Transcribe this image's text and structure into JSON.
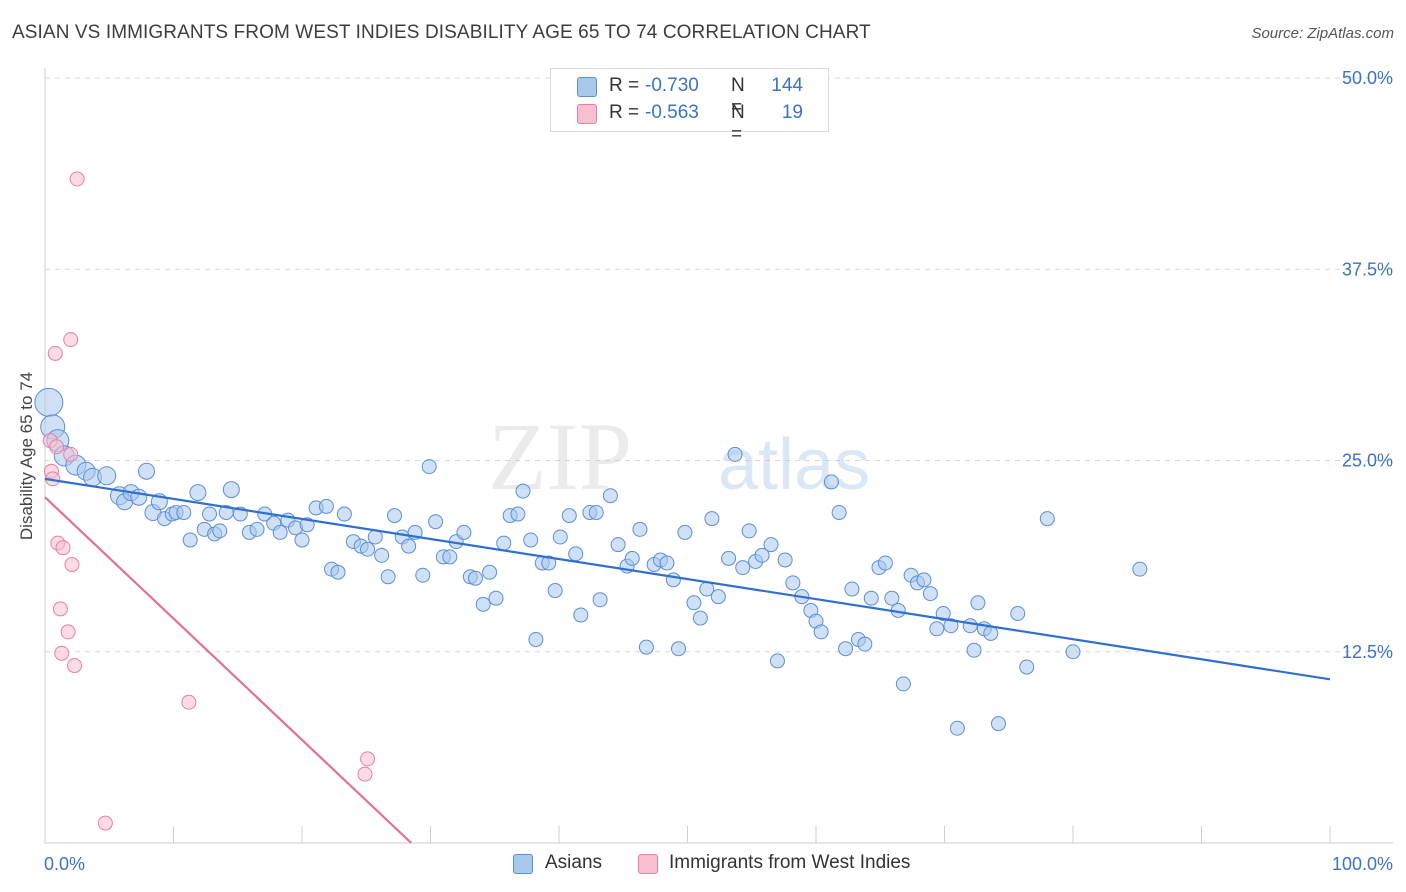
{
  "title": "ASIAN VS IMMIGRANTS FROM WEST INDIES DISABILITY AGE 65 TO 74 CORRELATION CHART",
  "source": "Source: ZipAtlas.com",
  "watermark": {
    "part1": "ZIP",
    "part2": "atlas"
  },
  "colors": {
    "asians_fill": "#a9c8ee",
    "asians_stroke": "#5b8fd6",
    "asians_line": "#2f6fcf",
    "wi_fill": "#f7bfd0",
    "wi_stroke": "#e77fa3",
    "wi_line": "#e07099",
    "tick_text": "#3b73c4",
    "grid": "#d8d8d8"
  },
  "legend_top": [
    {
      "r_label": "R =",
      "r_value": "-0.730",
      "n_label": "N =",
      "n_value": "144"
    },
    {
      "r_label": "R =",
      "r_value": "-0.563",
      "n_label": "N =",
      "n_value": "19"
    }
  ],
  "legend_bottom": [
    "Asians",
    "Immigrants from West Indies"
  ],
  "chart_data": {
    "type": "scatter",
    "xlabel": "",
    "ylabel": "Disability Age 65 to 74",
    "xlim": [
      0,
      100
    ],
    "ylim": [
      0,
      50
    ],
    "x_tick_labels": [
      {
        "value": 0,
        "label": "0.0%"
      },
      {
        "value": 100,
        "label": "100.0%"
      }
    ],
    "y_tick_labels": [
      {
        "value": 12.5,
        "label": "12.5%"
      },
      {
        "value": 25.0,
        "label": "25.0%"
      },
      {
        "value": 37.5,
        "label": "37.5%"
      },
      {
        "value": 50.0,
        "label": "50.0%"
      }
    ],
    "grid": "horizontal dashed",
    "legend_placement": "top-center",
    "series": [
      {
        "name": "Asians",
        "trend": {
          "x": [
            0,
            100
          ],
          "y": [
            23.8,
            10.7
          ]
        },
        "points": [
          [
            0.3,
            28.8,
            14
          ],
          [
            0.6,
            27.2,
            12
          ],
          [
            1.0,
            26.3,
            11
          ],
          [
            1.5,
            25.3,
            10
          ],
          [
            2.4,
            24.7,
            10
          ],
          [
            3.2,
            24.3,
            9
          ],
          [
            3.7,
            23.9,
            9
          ],
          [
            4.8,
            24.0,
            9
          ],
          [
            5.8,
            22.7,
            9
          ],
          [
            6.2,
            22.3,
            8
          ],
          [
            6.7,
            22.9,
            8
          ],
          [
            7.3,
            22.6,
            8
          ],
          [
            7.9,
            24.3,
            8
          ],
          [
            8.4,
            21.6,
            8
          ],
          [
            8.9,
            22.3,
            8
          ],
          [
            9.3,
            21.2,
            7
          ],
          [
            9.9,
            21.5,
            7
          ],
          [
            10.2,
            21.6,
            7
          ],
          [
            10.8,
            21.6,
            7
          ],
          [
            11.3,
            19.8,
            7
          ],
          [
            11.9,
            22.9,
            8
          ],
          [
            12.4,
            20.5,
            7
          ],
          [
            12.8,
            21.5,
            7
          ],
          [
            13.2,
            20.2,
            7
          ],
          [
            13.6,
            20.4,
            7
          ],
          [
            14.1,
            21.6,
            7
          ],
          [
            14.5,
            23.1,
            8
          ],
          [
            15.2,
            21.5,
            7
          ],
          [
            15.9,
            20.3,
            7
          ],
          [
            16.5,
            20.5,
            7
          ],
          [
            17.1,
            21.5,
            7
          ],
          [
            17.8,
            20.9,
            7
          ],
          [
            18.3,
            20.3,
            7
          ],
          [
            18.9,
            21.1,
            7
          ],
          [
            19.5,
            20.6,
            7
          ],
          [
            20.0,
            19.8,
            7
          ],
          [
            20.4,
            20.8,
            7
          ],
          [
            21.1,
            21.9,
            7
          ],
          [
            21.9,
            22.0,
            7
          ],
          [
            22.3,
            17.9,
            7
          ],
          [
            22.8,
            17.7,
            7
          ],
          [
            23.3,
            21.5,
            7
          ],
          [
            24.0,
            19.7,
            7
          ],
          [
            24.6,
            19.4,
            7
          ],
          [
            25.1,
            19.2,
            7
          ],
          [
            25.7,
            20.0,
            7
          ],
          [
            26.2,
            18.8,
            7
          ],
          [
            26.7,
            17.4,
            7
          ],
          [
            27.2,
            21.4,
            7
          ],
          [
            27.8,
            20.0,
            7
          ],
          [
            28.3,
            19.4,
            7
          ],
          [
            28.8,
            20.3,
            7
          ],
          [
            29.4,
            17.5,
            7
          ],
          [
            29.9,
            24.6,
            7
          ],
          [
            30.4,
            21.0,
            7
          ],
          [
            31.0,
            18.7,
            7
          ],
          [
            31.5,
            18.7,
            7
          ],
          [
            32.0,
            19.7,
            7
          ],
          [
            32.6,
            20.3,
            7
          ],
          [
            33.1,
            17.4,
            7
          ],
          [
            33.5,
            17.3,
            7
          ],
          [
            34.1,
            15.6,
            7
          ],
          [
            34.6,
            17.7,
            7
          ],
          [
            35.1,
            16.0,
            7
          ],
          [
            35.7,
            19.6,
            7
          ],
          [
            36.2,
            21.4,
            7
          ],
          [
            36.8,
            21.5,
            7
          ],
          [
            37.2,
            23.0,
            7
          ],
          [
            37.8,
            19.8,
            7
          ],
          [
            38.2,
            13.3,
            7
          ],
          [
            38.7,
            18.3,
            7
          ],
          [
            39.2,
            18.3,
            7
          ],
          [
            39.7,
            16.5,
            7
          ],
          [
            40.1,
            20.0,
            7
          ],
          [
            40.8,
            21.4,
            7
          ],
          [
            41.3,
            18.9,
            7
          ],
          [
            41.7,
            14.9,
            7
          ],
          [
            42.4,
            21.6,
            7
          ],
          [
            42.9,
            21.6,
            7
          ],
          [
            43.2,
            15.9,
            7
          ],
          [
            44.0,
            22.7,
            7
          ],
          [
            44.6,
            19.5,
            7
          ],
          [
            45.3,
            18.1,
            7
          ],
          [
            45.7,
            18.6,
            7
          ],
          [
            46.3,
            20.5,
            7
          ],
          [
            46.8,
            12.8,
            7
          ],
          [
            47.4,
            18.2,
            7
          ],
          [
            47.9,
            18.5,
            7
          ],
          [
            48.4,
            18.3,
            7
          ],
          [
            48.9,
            17.2,
            7
          ],
          [
            49.3,
            12.7,
            7
          ],
          [
            49.8,
            20.3,
            7
          ],
          [
            50.5,
            15.7,
            7
          ],
          [
            51.0,
            14.7,
            7
          ],
          [
            51.5,
            16.6,
            7
          ],
          [
            51.9,
            21.2,
            7
          ],
          [
            52.4,
            16.1,
            7
          ],
          [
            53.2,
            18.6,
            7
          ],
          [
            53.7,
            25.4,
            7
          ],
          [
            54.3,
            18.0,
            7
          ],
          [
            54.8,
            20.4,
            7
          ],
          [
            55.3,
            18.4,
            7
          ],
          [
            55.8,
            18.8,
            7
          ],
          [
            56.5,
            19.5,
            7
          ],
          [
            57.0,
            11.9,
            7
          ],
          [
            57.6,
            18.5,
            7
          ],
          [
            58.2,
            17.0,
            7
          ],
          [
            58.9,
            16.1,
            7
          ],
          [
            59.6,
            15.2,
            7
          ],
          [
            60.0,
            14.5,
            7
          ],
          [
            60.4,
            13.8,
            7
          ],
          [
            61.2,
            23.6,
            7
          ],
          [
            61.8,
            21.6,
            7
          ],
          [
            62.3,
            12.7,
            7
          ],
          [
            62.8,
            16.6,
            7
          ],
          [
            63.3,
            13.3,
            7
          ],
          [
            63.8,
            13.0,
            7
          ],
          [
            64.3,
            16.0,
            7
          ],
          [
            64.9,
            18.0,
            7
          ],
          [
            65.4,
            18.3,
            7
          ],
          [
            65.9,
            16.0,
            7
          ],
          [
            66.4,
            15.2,
            7
          ],
          [
            66.8,
            10.4,
            7
          ],
          [
            67.4,
            17.5,
            7
          ],
          [
            67.9,
            17.0,
            7
          ],
          [
            68.4,
            17.2,
            7
          ],
          [
            68.9,
            16.3,
            7
          ],
          [
            69.4,
            14.0,
            7
          ],
          [
            69.9,
            15.0,
            7
          ],
          [
            70.5,
            14.2,
            7
          ],
          [
            71.0,
            7.5,
            7
          ],
          [
            72.0,
            14.2,
            7
          ],
          [
            72.6,
            15.7,
            7
          ],
          [
            73.1,
            14.0,
            7
          ],
          [
            73.6,
            13.7,
            7
          ],
          [
            74.2,
            7.8,
            7
          ],
          [
            72.3,
            12.6,
            7
          ],
          [
            75.7,
            15.0,
            7
          ],
          [
            76.4,
            11.5,
            7
          ],
          [
            78.0,
            21.2,
            7
          ],
          [
            80.0,
            12.5,
            7
          ],
          [
            85.2,
            17.9,
            7
          ]
        ]
      },
      {
        "name": "Immigrants from West Indies",
        "trend": {
          "x": [
            0,
            28.5
          ],
          "y": [
            22.6,
            0
          ]
        },
        "points": [
          [
            0.4,
            26.3,
            7
          ],
          [
            0.5,
            24.3,
            7
          ],
          [
            0.6,
            23.8,
            7
          ],
          [
            0.8,
            32.0,
            7
          ],
          [
            0.9,
            25.9,
            7
          ],
          [
            1.0,
            19.6,
            7
          ],
          [
            1.2,
            15.3,
            7
          ],
          [
            1.3,
            12.4,
            7
          ],
          [
            1.4,
            19.3,
            7
          ],
          [
            1.8,
            13.8,
            7
          ],
          [
            2.0,
            32.9,
            7
          ],
          [
            2.0,
            25.4,
            7
          ],
          [
            2.1,
            18.2,
            7
          ],
          [
            2.3,
            11.6,
            7
          ],
          [
            2.5,
            43.4,
            7
          ],
          [
            11.2,
            9.2,
            7
          ],
          [
            24.9,
            4.5,
            7
          ],
          [
            25.1,
            5.5,
            7
          ],
          [
            4.7,
            1.3,
            7
          ]
        ]
      }
    ]
  }
}
